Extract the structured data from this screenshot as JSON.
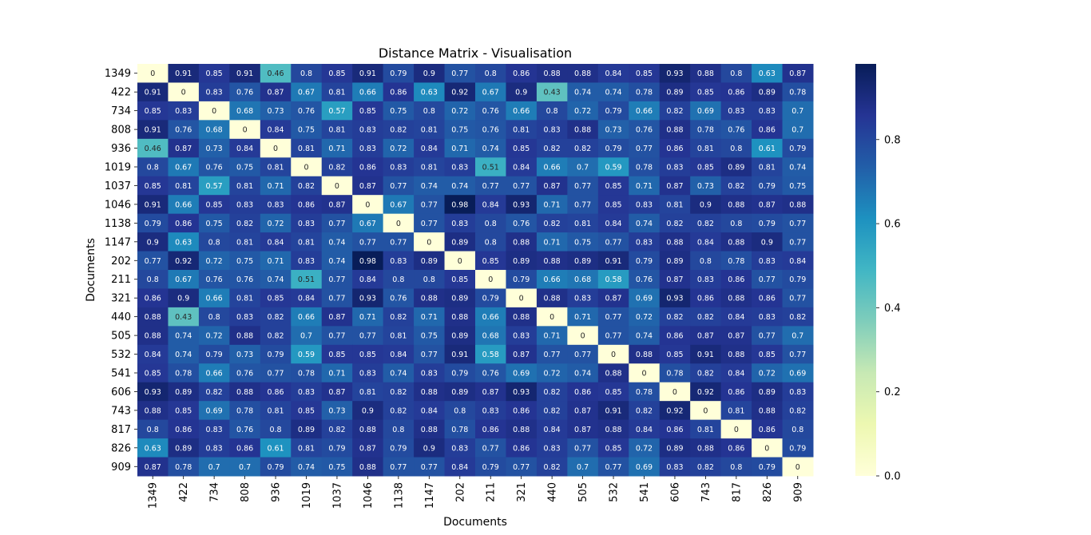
{
  "chart_data": {
    "type": "heatmap",
    "title": "Distance Matrix - Visualisation",
    "xlabel": "Documents",
    "ylabel": "Documents",
    "labels": [
      "1349",
      "422",
      "734",
      "808",
      "936",
      "1019",
      "1037",
      "1046",
      "1138",
      "1147",
      "202",
      "211",
      "321",
      "440",
      "505",
      "532",
      "541",
      "606",
      "743",
      "817",
      "826",
      "909"
    ],
    "matrix": [
      [
        0,
        0.91,
        0.85,
        0.91,
        0.46,
        0.8,
        0.85,
        0.91,
        0.79,
        0.9,
        0.77,
        0.8,
        0.86,
        0.88,
        0.88,
        0.84,
        0.85,
        0.93,
        0.88,
        0.8,
        0.63,
        0.87
      ],
      [
        0.91,
        0,
        0.83,
        0.76,
        0.87,
        0.67,
        0.81,
        0.66,
        0.86,
        0.63,
        0.92,
        0.67,
        0.9,
        0.43,
        0.74,
        0.74,
        0.78,
        0.89,
        0.85,
        0.86,
        0.89,
        0.78
      ],
      [
        0.85,
        0.83,
        0,
        0.68,
        0.73,
        0.76,
        0.57,
        0.85,
        0.75,
        0.8,
        0.72,
        0.76,
        0.66,
        0.8,
        0.72,
        0.79,
        0.66,
        0.82,
        0.69,
        0.83,
        0.83,
        0.7
      ],
      [
        0.91,
        0.76,
        0.68,
        0,
        0.84,
        0.75,
        0.81,
        0.83,
        0.82,
        0.81,
        0.75,
        0.76,
        0.81,
        0.83,
        0.88,
        0.73,
        0.76,
        0.88,
        0.78,
        0.76,
        0.86,
        0.7
      ],
      [
        0.46,
        0.87,
        0.73,
        0.84,
        0,
        0.81,
        0.71,
        0.83,
        0.72,
        0.84,
        0.71,
        0.74,
        0.85,
        0.82,
        0.82,
        0.79,
        0.77,
        0.86,
        0.81,
        0.8,
        0.61,
        0.79
      ],
      [
        0.8,
        0.67,
        0.76,
        0.75,
        0.81,
        0,
        0.82,
        0.86,
        0.83,
        0.81,
        0.83,
        0.51,
        0.84,
        0.66,
        0.7,
        0.59,
        0.78,
        0.83,
        0.85,
        0.89,
        0.81,
        0.74
      ],
      [
        0.85,
        0.81,
        0.57,
        0.81,
        0.71,
        0.82,
        0,
        0.87,
        0.77,
        0.74,
        0.74,
        0.77,
        0.77,
        0.87,
        0.77,
        0.85,
        0.71,
        0.87,
        0.73,
        0.82,
        0.79,
        0.75
      ],
      [
        0.91,
        0.66,
        0.85,
        0.83,
        0.83,
        0.86,
        0.87,
        0,
        0.67,
        0.77,
        0.98,
        0.84,
        0.93,
        0.71,
        0.77,
        0.85,
        0.83,
        0.81,
        0.9,
        0.88,
        0.87,
        0.88
      ],
      [
        0.79,
        0.86,
        0.75,
        0.82,
        0.72,
        0.83,
        0.77,
        0.67,
        0,
        0.77,
        0.83,
        0.8,
        0.76,
        0.82,
        0.81,
        0.84,
        0.74,
        0.82,
        0.82,
        0.8,
        0.79,
        0.77
      ],
      [
        0.9,
        0.63,
        0.8,
        0.81,
        0.84,
        0.81,
        0.74,
        0.77,
        0.77,
        0,
        0.89,
        0.8,
        0.88,
        0.71,
        0.75,
        0.77,
        0.83,
        0.88,
        0.84,
        0.88,
        0.9,
        0.77
      ],
      [
        0.77,
        0.92,
        0.72,
        0.75,
        0.71,
        0.83,
        0.74,
        0.98,
        0.83,
        0.89,
        0,
        0.85,
        0.89,
        0.88,
        0.89,
        0.91,
        0.79,
        0.89,
        0.8,
        0.78,
        0.83,
        0.84
      ],
      [
        0.8,
        0.67,
        0.76,
        0.76,
        0.74,
        0.51,
        0.77,
        0.84,
        0.8,
        0.8,
        0.85,
        0,
        0.79,
        0.66,
        0.68,
        0.58,
        0.76,
        0.87,
        0.83,
        0.86,
        0.77,
        0.79
      ],
      [
        0.86,
        0.9,
        0.66,
        0.81,
        0.85,
        0.84,
        0.77,
        0.93,
        0.76,
        0.88,
        0.89,
        0.79,
        0,
        0.88,
        0.83,
        0.87,
        0.69,
        0.93,
        0.86,
        0.88,
        0.86,
        0.77
      ],
      [
        0.88,
        0.43,
        0.8,
        0.83,
        0.82,
        0.66,
        0.87,
        0.71,
        0.82,
        0.71,
        0.88,
        0.66,
        0.88,
        0,
        0.71,
        0.77,
        0.72,
        0.82,
        0.82,
        0.84,
        0.83,
        0.82
      ],
      [
        0.88,
        0.74,
        0.72,
        0.88,
        0.82,
        0.7,
        0.77,
        0.77,
        0.81,
        0.75,
        0.89,
        0.68,
        0.83,
        0.71,
        0,
        0.77,
        0.74,
        0.86,
        0.87,
        0.87,
        0.77,
        0.7
      ],
      [
        0.84,
        0.74,
        0.79,
        0.73,
        0.79,
        0.59,
        0.85,
        0.85,
        0.84,
        0.77,
        0.91,
        0.58,
        0.87,
        0.77,
        0.77,
        0,
        0.88,
        0.85,
        0.91,
        0.88,
        0.85,
        0.77
      ],
      [
        0.85,
        0.78,
        0.66,
        0.76,
        0.77,
        0.78,
        0.71,
        0.83,
        0.74,
        0.83,
        0.79,
        0.76,
        0.69,
        0.72,
        0.74,
        0.88,
        0,
        0.78,
        0.82,
        0.84,
        0.72,
        0.69
      ],
      [
        0.93,
        0.89,
        0.82,
        0.88,
        0.86,
        0.83,
        0.87,
        0.81,
        0.82,
        0.88,
        0.89,
        0.87,
        0.93,
        0.82,
        0.86,
        0.85,
        0.78,
        0,
        0.92,
        0.86,
        0.89,
        0.83
      ],
      [
        0.88,
        0.85,
        0.69,
        0.78,
        0.81,
        0.85,
        0.73,
        0.9,
        0.82,
        0.84,
        0.8,
        0.83,
        0.86,
        0.82,
        0.87,
        0.91,
        0.82,
        0.92,
        0,
        0.81,
        0.88,
        0.82
      ],
      [
        0.8,
        0.86,
        0.83,
        0.76,
        0.8,
        0.89,
        0.82,
        0.88,
        0.8,
        0.88,
        0.78,
        0.86,
        0.88,
        0.84,
        0.87,
        0.88,
        0.84,
        0.86,
        0.81,
        0,
        0.86,
        0.8
      ],
      [
        0.63,
        0.89,
        0.83,
        0.86,
        0.61,
        0.81,
        0.79,
        0.87,
        0.79,
        0.9,
        0.83,
        0.77,
        0.86,
        0.83,
        0.77,
        0.85,
        0.72,
        0.89,
        0.88,
        0.86,
        0,
        0.79
      ],
      [
        0.87,
        0.78,
        0.7,
        0.7,
        0.79,
        0.74,
        0.75,
        0.88,
        0.77,
        0.77,
        0.84,
        0.79,
        0.77,
        0.82,
        0.7,
        0.77,
        0.69,
        0.83,
        0.82,
        0.8,
        0.79,
        0
      ]
    ],
    "vmin": 0,
    "vmax": 0.98,
    "colormap": "YlGnBu",
    "colormap_stops": [
      "#ffffd9",
      "#edf8b1",
      "#c7e9b4",
      "#7fcdbb",
      "#41b6c4",
      "#1d91c0",
      "#225ea8",
      "#253494",
      "#081d58"
    ],
    "colorbar": {
      "ticks": [
        0.0,
        0.2,
        0.4,
        0.6,
        0.8
      ],
      "tick_labels": [
        "0.0",
        "0.2",
        "0.4",
        "0.6",
        "0.8"
      ]
    },
    "grid": false,
    "legend": "colorbar-right"
  }
}
